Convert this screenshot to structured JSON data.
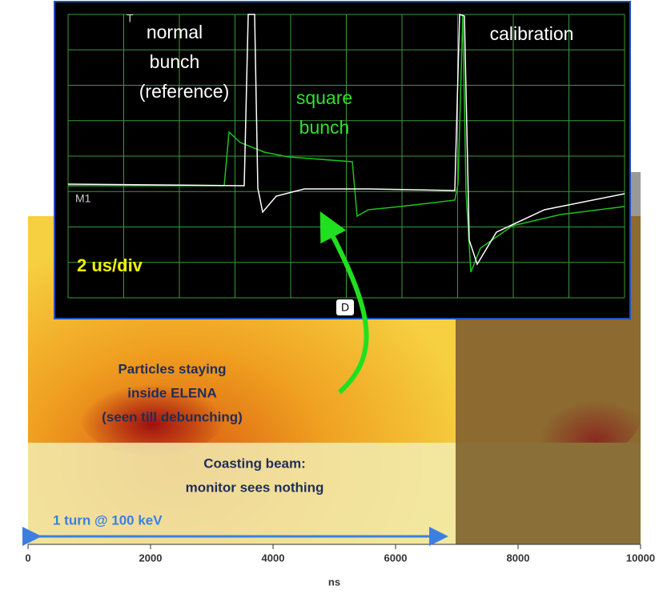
{
  "chart_data": {
    "type": "heatmap",
    "xlabel": "ns",
    "xlim": [
      0,
      10000
    ],
    "xticks": [
      0,
      2000,
      4000,
      6000,
      8000,
      10000
    ],
    "annotations": {
      "particles": [
        "Particles staying",
        "inside ELENA",
        "(seen till debunching)"
      ],
      "coasting": [
        "Coasting beam:",
        "monitor sees nothing"
      ],
      "turn": "1 turn @ 100 keV"
    }
  },
  "inset": {
    "reference": [
      "normal",
      "bunch",
      "(reference)"
    ],
    "square": [
      "square",
      "bunch"
    ],
    "calibration": "calibration",
    "channel": "M1",
    "timebase": "2 us/div",
    "trigger": "T",
    "marker": "D"
  }
}
